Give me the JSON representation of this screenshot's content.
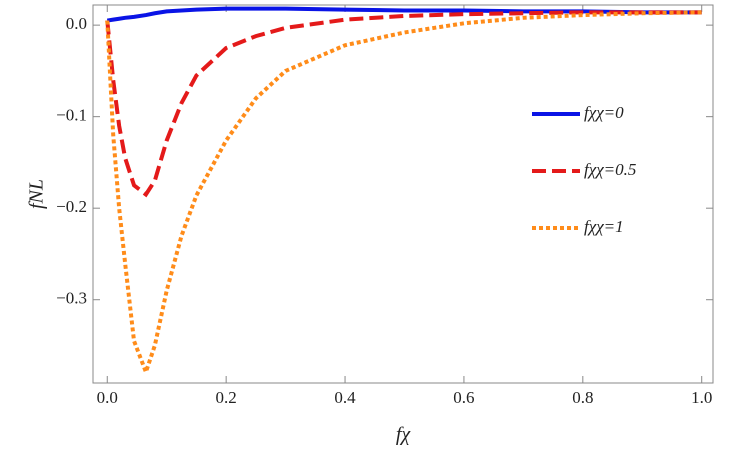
{
  "chart_data": {
    "type": "line",
    "x_label": "fχ",
    "y_label": "fNL",
    "x": [
      0,
      0.01,
      0.02,
      0.03,
      0.045,
      0.065,
      0.08,
      0.1,
      0.125,
      0.15,
      0.2,
      0.25,
      0.3,
      0.4,
      0.5,
      0.6,
      0.7,
      0.8,
      0.9,
      1.0
    ],
    "series": [
      {
        "name": "fχχ=0",
        "color": "#0a14e6",
        "dash": "none",
        "values": [
          0.005,
          0.006,
          0.007,
          0.008,
          0.009,
          0.011,
          0.013,
          0.015,
          0.016,
          0.017,
          0.018,
          0.018,
          0.018,
          0.017,
          0.016,
          0.016,
          0.015,
          0.015,
          0.014,
          0.014
        ]
      },
      {
        "name": "fχχ=0.5",
        "color": "#e41a1a",
        "dash": "14,6",
        "values": [
          0.005,
          -0.06,
          -0.11,
          -0.145,
          -0.175,
          -0.185,
          -0.17,
          -0.126,
          -0.085,
          -0.055,
          -0.025,
          -0.012,
          -0.003,
          0.006,
          0.01,
          0.012,
          0.013,
          0.014,
          0.014,
          0.014
        ]
      },
      {
        "name": "fχχ=1",
        "color": "#ff8c1a",
        "dash": "4,3",
        "values": [
          0.005,
          -0.12,
          -0.2,
          -0.26,
          -0.345,
          -0.379,
          -0.35,
          -0.29,
          -0.23,
          -0.186,
          -0.126,
          -0.08,
          -0.05,
          -0.022,
          -0.008,
          0.002,
          0.008,
          0.011,
          0.013,
          0.014
        ]
      }
    ],
    "xlim": [
      -0.024,
      1.019
    ],
    "ylim": [
      -0.391,
      0.022
    ],
    "xticks": [
      {
        "value": 0,
        "label": "0.0"
      },
      0.2,
      0.4,
      0.6,
      0.8,
      {
        "value": 1,
        "label": "1.0"
      }
    ],
    "yticks": [
      {
        "value": 0,
        "label": "0.0"
      },
      {
        "value": -0.1,
        "label": "−0.1"
      },
      {
        "value": -0.2,
        "label": "−0.2"
      },
      {
        "value": -0.3,
        "label": "−0.3"
      }
    ]
  }
}
